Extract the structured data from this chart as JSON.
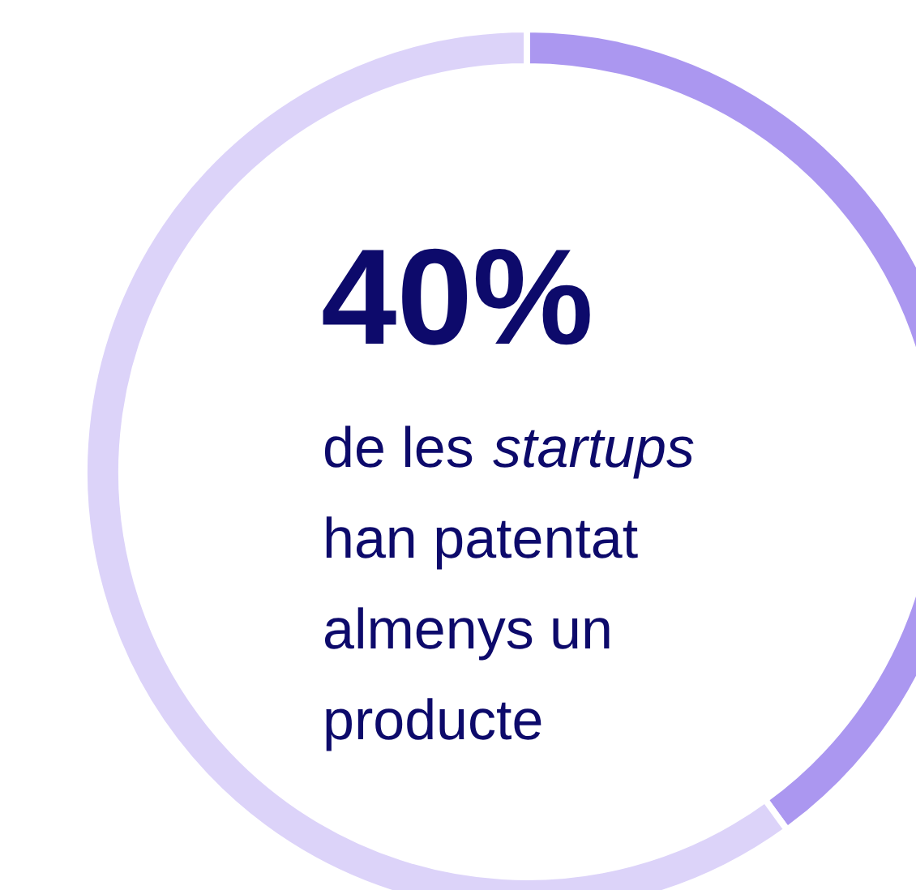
{
  "chart_data": {
    "type": "donut",
    "categories": [
      null,
      null
    ],
    "values": [
      40,
      60
    ],
    "colors": [
      "#ab97f0",
      "#dcd3f9"
    ],
    "annotations": [
      "40%",
      "de les startups han patentat almenys un producte"
    ]
  }
}
